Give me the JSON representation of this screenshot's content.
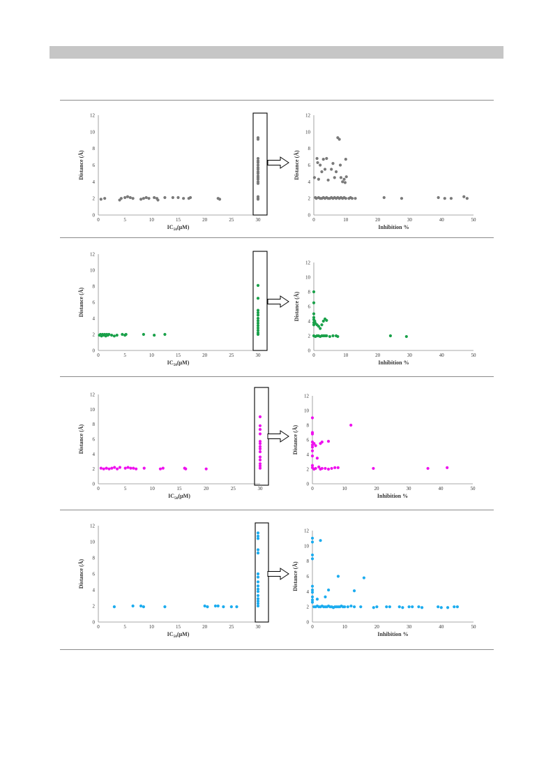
{
  "colors": {
    "gray": "#7a7a7a",
    "green": "#1aa14a",
    "magenta": "#ee12ee",
    "blue": "#1cacef"
  },
  "icons": {
    "arrow": "right-arrow-icon"
  },
  "chart_data": [
    {
      "type": "scatter",
      "panel": 1,
      "side": "left",
      "color": "#7a7a7a",
      "xlabel": "IC50(μM)",
      "ylabel": "Distance (Å)",
      "xlim": [
        0,
        30
      ],
      "ylim": [
        0,
        12
      ],
      "xticks": [
        0,
        5,
        10,
        15,
        20,
        25,
        30
      ],
      "yticks": [
        0,
        2,
        4,
        6,
        8,
        10,
        12
      ],
      "points": [
        [
          0.5,
          1.9
        ],
        [
          1.2,
          2.0
        ],
        [
          4,
          1.8
        ],
        [
          4.3,
          2.0
        ],
        [
          5,
          2.1
        ],
        [
          5.5,
          2.2
        ],
        [
          6,
          2.1
        ],
        [
          6.5,
          2.0
        ],
        [
          8,
          1.9
        ],
        [
          8.5,
          2.0
        ],
        [
          9,
          2.1
        ],
        [
          9.5,
          2.0
        ],
        [
          10.5,
          2.1
        ],
        [
          11,
          2.0
        ],
        [
          11.2,
          1.8
        ],
        [
          12.5,
          2.1
        ],
        [
          14,
          2.1
        ],
        [
          15,
          2.1
        ],
        [
          16,
          2.0
        ],
        [
          17,
          2.0
        ],
        [
          17.3,
          2.1
        ],
        [
          22.5,
          2.0
        ],
        [
          22.8,
          1.9
        ],
        [
          30,
          9.3
        ],
        [
          30,
          9.1
        ],
        [
          30,
          6.8
        ],
        [
          30,
          6.5
        ],
        [
          30,
          6.3
        ],
        [
          30,
          6.0
        ],
        [
          30,
          5.7
        ],
        [
          30,
          5.5
        ],
        [
          30,
          5.2
        ],
        [
          30,
          5.0
        ],
        [
          30,
          4.7
        ],
        [
          30,
          4.5
        ],
        [
          30,
          4.3
        ],
        [
          30,
          4.0
        ],
        [
          30,
          3.8
        ],
        [
          30,
          2.2
        ],
        [
          30,
          2.0
        ],
        [
          30,
          1.9
        ]
      ]
    },
    {
      "type": "scatter",
      "panel": 1,
      "side": "right",
      "color": "#7a7a7a",
      "xlabel": "Inhibition %",
      "ylabel": "Distance (Å)",
      "xlim": [
        0,
        50
      ],
      "ylim": [
        0,
        12
      ],
      "xticks": [
        0,
        10,
        20,
        30,
        40,
        50
      ],
      "yticks": [
        0,
        2,
        4,
        6,
        8,
        10,
        12
      ],
      "points": [
        [
          0.2,
          4.5
        ],
        [
          0.5,
          2.1
        ],
        [
          1,
          6.8
        ],
        [
          1.2,
          6.3
        ],
        [
          1.5,
          4.3
        ],
        [
          2,
          6.0
        ],
        [
          2.5,
          5.2
        ],
        [
          3,
          6.7
        ],
        [
          3.5,
          5.5
        ],
        [
          4,
          6.8
        ],
        [
          4.5,
          4.2
        ],
        [
          5,
          2.0
        ],
        [
          5.5,
          5.5
        ],
        [
          6,
          6.2
        ],
        [
          6.5,
          4.5
        ],
        [
          7,
          5.2
        ],
        [
          7.5,
          9.3
        ],
        [
          8,
          9.1
        ],
        [
          8.3,
          6.0
        ],
        [
          8.5,
          4.5
        ],
        [
          9,
          4.0
        ],
        [
          9.5,
          4.3
        ],
        [
          10,
          6.7
        ],
        [
          10.2,
          4.6
        ],
        [
          9.8,
          3.9
        ],
        [
          0.8,
          2.0
        ],
        [
          1.5,
          2.1
        ],
        [
          2,
          2.0
        ],
        [
          2.5,
          2.0
        ],
        [
          3,
          2.1
        ],
        [
          3.5,
          2.0
        ],
        [
          4,
          2.1
        ],
        [
          4.5,
          2.0
        ],
        [
          5.5,
          2.1
        ],
        [
          6,
          2.0
        ],
        [
          6.5,
          2.1
        ],
        [
          7,
          2.0
        ],
        [
          7.5,
          2.1
        ],
        [
          8,
          2.0
        ],
        [
          8.5,
          2.1
        ],
        [
          9,
          2.0
        ],
        [
          9.5,
          2.1
        ],
        [
          10,
          2.0
        ],
        [
          11,
          2.0
        ],
        [
          11.5,
          2.1
        ],
        [
          12,
          2.0
        ],
        [
          13,
          2.0
        ],
        [
          22,
          2.1
        ],
        [
          27.5,
          2.0
        ],
        [
          39,
          2.1
        ],
        [
          41,
          2.0
        ],
        [
          43,
          2.0
        ],
        [
          47,
          2.2
        ],
        [
          48,
          2.0
        ]
      ]
    },
    {
      "type": "scatter",
      "panel": 2,
      "side": "left",
      "color": "#1aa14a",
      "xlabel": "IC50(μM)",
      "ylabel": "Distance (Å)",
      "xlim": [
        0,
        30
      ],
      "ylim": [
        0,
        12
      ],
      "xticks": [
        0,
        5,
        10,
        15,
        20,
        25,
        30
      ],
      "yticks": [
        0,
        2,
        4,
        6,
        8,
        10,
        12
      ],
      "points": [
        [
          0.2,
          1.9
        ],
        [
          0.4,
          2.0
        ],
        [
          0.6,
          1.8
        ],
        [
          0.8,
          2.0
        ],
        [
          1,
          1.9
        ],
        [
          1.2,
          2.0
        ],
        [
          1.4,
          1.8
        ],
        [
          1.6,
          2.0
        ],
        [
          1.8,
          1.9
        ],
        [
          2,
          2.0
        ],
        [
          2.5,
          1.9
        ],
        [
          3,
          1.8
        ],
        [
          3.5,
          1.9
        ],
        [
          4.5,
          2.0
        ],
        [
          5,
          1.9
        ],
        [
          5.2,
          2.0
        ],
        [
          8.5,
          2.0
        ],
        [
          10.5,
          1.9
        ],
        [
          12.5,
          2.0
        ],
        [
          30,
          8.1
        ],
        [
          30,
          6.5
        ],
        [
          30,
          5.0
        ],
        [
          30,
          4.7
        ],
        [
          30,
          4.4
        ],
        [
          30,
          4.0
        ],
        [
          30,
          3.7
        ],
        [
          30,
          3.4
        ],
        [
          30,
          3.1
        ],
        [
          30,
          2.8
        ],
        [
          30,
          2.5
        ],
        [
          30,
          2.2
        ],
        [
          30,
          2.0
        ]
      ]
    },
    {
      "type": "scatter",
      "panel": 2,
      "side": "right",
      "color": "#1aa14a",
      "xlabel": "Inhibition %",
      "ylabel": "Distance (Å)",
      "xlim": [
        0,
        50
      ],
      "ylim": [
        0,
        12
      ],
      "xticks": [
        0,
        10,
        20,
        30,
        40,
        50
      ],
      "yticks": [
        0,
        2,
        4,
        6,
        8,
        10,
        12
      ],
      "points": [
        [
          0,
          8.0
        ],
        [
          0,
          6.5
        ],
        [
          0,
          5.0
        ],
        [
          0,
          4.5
        ],
        [
          0,
          4.2
        ],
        [
          0,
          3.8
        ],
        [
          0,
          3.5
        ],
        [
          0.3,
          4.0
        ],
        [
          0.5,
          3.7
        ],
        [
          1,
          3.5
        ],
        [
          1.5,
          3.3
        ],
        [
          2,
          3.0
        ],
        [
          2.5,
          3.5
        ],
        [
          3,
          4.0
        ],
        [
          3.5,
          4.3
        ],
        [
          4,
          4.1
        ],
        [
          0,
          2.0
        ],
        [
          0.5,
          1.9
        ],
        [
          1,
          2.0
        ],
        [
          1.5,
          2.0
        ],
        [
          2,
          1.9
        ],
        [
          2.5,
          2.0
        ],
        [
          3,
          2.0
        ],
        [
          3.5,
          2.0
        ],
        [
          4,
          2.0
        ],
        [
          5,
          1.9
        ],
        [
          6,
          2.0
        ],
        [
          7,
          2.0
        ],
        [
          7.5,
          1.9
        ],
        [
          24,
          2.0
        ],
        [
          29,
          1.9
        ]
      ]
    },
    {
      "type": "scatter",
      "panel": 3,
      "side": "left",
      "color": "#ee12ee",
      "xlabel": "IC50(μM)",
      "ylabel": "Distance (Å)",
      "xlim": [
        0,
        30
      ],
      "ylim": [
        0,
        12
      ],
      "xticks": [
        0,
        5,
        10,
        15,
        20,
        25,
        30
      ],
      "yticks": [
        0,
        2,
        4,
        6,
        8,
        10,
        12
      ],
      "points": [
        [
          0.5,
          2.1
        ],
        [
          1,
          2.0
        ],
        [
          1.5,
          2.1
        ],
        [
          2,
          2.0
        ],
        [
          2.5,
          2.1
        ],
        [
          3,
          2.2
        ],
        [
          3.5,
          2.0
        ],
        [
          4,
          2.2
        ],
        [
          5,
          2.1
        ],
        [
          5.5,
          2.2
        ],
        [
          6,
          2.1
        ],
        [
          6.5,
          2.1
        ],
        [
          7,
          2.0
        ],
        [
          8.5,
          2.1
        ],
        [
          11.5,
          2.0
        ],
        [
          12,
          2.1
        ],
        [
          16,
          2.1
        ],
        [
          16.2,
          2.0
        ],
        [
          20,
          2.0
        ],
        [
          30,
          9.0
        ],
        [
          30,
          7.8
        ],
        [
          30,
          7.3
        ],
        [
          30,
          6.7
        ],
        [
          30,
          5.7
        ],
        [
          30,
          5.4
        ],
        [
          30,
          5.0
        ],
        [
          30,
          4.7
        ],
        [
          30,
          4.3
        ],
        [
          30,
          3.6
        ],
        [
          30,
          3.2
        ],
        [
          30,
          2.7
        ],
        [
          30,
          2.4
        ],
        [
          30,
          2.1
        ]
      ]
    },
    {
      "type": "scatter",
      "panel": 3,
      "side": "right",
      "color": "#ee12ee",
      "xlabel": "Inhibition %",
      "ylabel": "Distance (Å)",
      "xlim": [
        0,
        50
      ],
      "ylim": [
        0,
        12
      ],
      "xticks": [
        0,
        10,
        20,
        30,
        40,
        50
      ],
      "yticks": [
        0,
        2,
        4,
        6,
        8,
        10,
        12
      ],
      "points": [
        [
          0,
          9.0
        ],
        [
          0,
          7.0
        ],
        [
          0,
          6.8
        ],
        [
          0,
          5.7
        ],
        [
          0,
          5.3
        ],
        [
          0,
          5.0
        ],
        [
          0,
          4.5
        ],
        [
          0,
          3.8
        ],
        [
          0,
          2.5
        ],
        [
          0.5,
          5.5
        ],
        [
          1,
          5.2
        ],
        [
          1.5,
          3.5
        ],
        [
          2.5,
          5.5
        ],
        [
          3,
          5.7
        ],
        [
          5,
          5.8
        ],
        [
          12,
          8.0
        ],
        [
          0,
          2.2
        ],
        [
          0.5,
          2.0
        ],
        [
          1,
          2.1
        ],
        [
          2,
          2.3
        ],
        [
          2.5,
          2.0
        ],
        [
          3,
          2.1
        ],
        [
          4,
          2.1
        ],
        [
          5,
          2.0
        ],
        [
          6,
          2.1
        ],
        [
          7,
          2.2
        ],
        [
          8,
          2.2
        ],
        [
          19,
          2.1
        ],
        [
          36,
          2.1
        ],
        [
          42,
          2.2
        ]
      ]
    },
    {
      "type": "scatter",
      "panel": 4,
      "side": "left",
      "color": "#1cacef",
      "xlabel": "IC50(μM)",
      "ylabel": "Distance (Å)",
      "xlim": [
        0,
        30
      ],
      "ylim": [
        0,
        12
      ],
      "xticks": [
        0,
        5,
        10,
        15,
        20,
        25,
        30
      ],
      "yticks": [
        0,
        2,
        4,
        6,
        8,
        10,
        12
      ],
      "points": [
        [
          3,
          1.9
        ],
        [
          6.5,
          2.0
        ],
        [
          8,
          2.0
        ],
        [
          8.5,
          1.9
        ],
        [
          12.5,
          1.9
        ],
        [
          20,
          2.0
        ],
        [
          20.5,
          1.9
        ],
        [
          22,
          2.0
        ],
        [
          22.5,
          2.0
        ],
        [
          23.5,
          1.9
        ],
        [
          25,
          1.9
        ],
        [
          26,
          1.9
        ],
        [
          30,
          11.1
        ],
        [
          30,
          10.7
        ],
        [
          30,
          10.4
        ],
        [
          30,
          9.0
        ],
        [
          30,
          8.6
        ],
        [
          30,
          6.0
        ],
        [
          30,
          5.6
        ],
        [
          30,
          5.0
        ],
        [
          30,
          4.5
        ],
        [
          30,
          4.1
        ],
        [
          30,
          3.8
        ],
        [
          30,
          3.3
        ],
        [
          30,
          2.9
        ],
        [
          30,
          2.6
        ],
        [
          30,
          2.3
        ],
        [
          30,
          2.0
        ]
      ]
    },
    {
      "type": "scatter",
      "panel": 4,
      "side": "right",
      "color": "#1cacef",
      "xlabel": "Inhibition %",
      "ylabel": "Distance (Å)",
      "xlim": [
        0,
        50
      ],
      "ylim": [
        0,
        12
      ],
      "xticks": [
        0,
        10,
        20,
        30,
        40,
        50
      ],
      "yticks": [
        0,
        2,
        4,
        6,
        8,
        10,
        12
      ],
      "points": [
        [
          0,
          11.0
        ],
        [
          0,
          10.5
        ],
        [
          0,
          8.8
        ],
        [
          0,
          8.3
        ],
        [
          0,
          4.7
        ],
        [
          0,
          4.2
        ],
        [
          0,
          3.9
        ],
        [
          0,
          3.3
        ],
        [
          0,
          2.9
        ],
        [
          0,
          2.6
        ],
        [
          1.5,
          3.0
        ],
        [
          2.5,
          10.7
        ],
        [
          4,
          3.3
        ],
        [
          5,
          4.2
        ],
        [
          8,
          6.0
        ],
        [
          13,
          4.1
        ],
        [
          16,
          5.8
        ],
        [
          0.5,
          2.0
        ],
        [
          1,
          2.0
        ],
        [
          1.5,
          2.1
        ],
        [
          2,
          2.0
        ],
        [
          2.5,
          2.0
        ],
        [
          3,
          2.1
        ],
        [
          3.5,
          2.0
        ],
        [
          4,
          2.0
        ],
        [
          4.5,
          2.0
        ],
        [
          5,
          2.1
        ],
        [
          5.5,
          2.0
        ],
        [
          6,
          2.0
        ],
        [
          6.5,
          1.9
        ],
        [
          7,
          2.0
        ],
        [
          7.5,
          2.0
        ],
        [
          8,
          2.0
        ],
        [
          8.5,
          2.0
        ],
        [
          9,
          2.1
        ],
        [
          9.5,
          2.0
        ],
        [
          10,
          2.0
        ],
        [
          11,
          2.0
        ],
        [
          12,
          2.1
        ],
        [
          13,
          2.0
        ],
        [
          15,
          2.0
        ],
        [
          19,
          1.9
        ],
        [
          20,
          2.0
        ],
        [
          23,
          2.0
        ],
        [
          24,
          2.0
        ],
        [
          27,
          2.0
        ],
        [
          28,
          1.9
        ],
        [
          30,
          2.0
        ],
        [
          31,
          2.0
        ],
        [
          33,
          2.0
        ],
        [
          34,
          1.9
        ],
        [
          39,
          2.0
        ],
        [
          40,
          1.9
        ],
        [
          42,
          1.9
        ],
        [
          44,
          2.0
        ],
        [
          45,
          2.0
        ]
      ]
    }
  ]
}
